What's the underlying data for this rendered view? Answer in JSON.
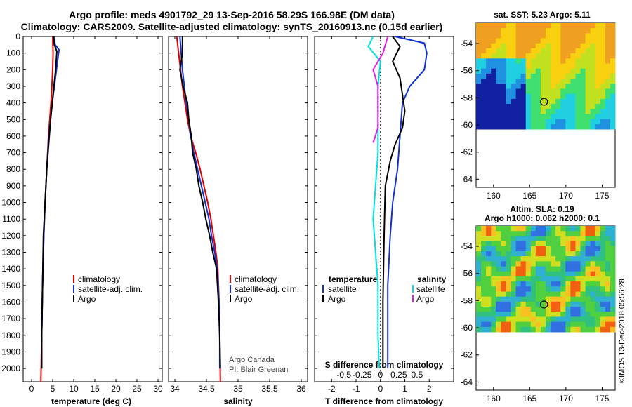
{
  "header": {
    "title_line1": "Argo profile: meds 4901792_29 13-Sep-2016 58.29S 166.98E (DM data)",
    "title_line2": "Climatology: CARS2009. Satellite-adjusted climatology: synTS_20160913.nc (0.15d earlier)"
  },
  "depth_ticks": [
    0,
    100,
    200,
    300,
    400,
    500,
    600,
    700,
    800,
    900,
    1000,
    1100,
    1200,
    1300,
    1400,
    1500,
    1600,
    1700,
    1800,
    1900,
    2000
  ],
  "colors": {
    "climatology": "#e00000",
    "satellite": "#1030d0",
    "argo": "#000000",
    "salinity_satellite": "#00e0e0",
    "salinity_argo": "#e020e0"
  },
  "chart_data": [
    {
      "type": "line",
      "xlabel": "temperature (deg C)",
      "ylabel": "",
      "xticks": [
        0,
        5,
        10,
        15,
        20,
        25,
        30
      ],
      "xlim": [
        -2,
        31
      ],
      "ylim": [
        2080,
        0
      ],
      "legend": [
        "climatology",
        "satellite-adj. clim.",
        "Argo"
      ],
      "series": [
        {
          "name": "climatology",
          "color": "#e00000",
          "points": [
            [
              5.0,
              0
            ],
            [
              5.1,
              100
            ],
            [
              5.0,
              200
            ],
            [
              4.8,
              300
            ],
            [
              4.6,
              400
            ],
            [
              4.3,
              500
            ],
            [
              4.0,
              600
            ],
            [
              3.6,
              800
            ],
            [
              3.2,
              1000
            ],
            [
              2.9,
              1200
            ],
            [
              2.6,
              1500
            ],
            [
              2.4,
              1800
            ],
            [
              2.2,
              2080
            ]
          ]
        },
        {
          "name": "satellite-adj. clim.",
          "color": "#1030d0",
          "points": [
            [
              5.3,
              0
            ],
            [
              5.6,
              50
            ],
            [
              6.5,
              80
            ],
            [
              5.9,
              200
            ],
            [
              5.4,
              300
            ],
            [
              4.9,
              400
            ],
            [
              4.5,
              500
            ],
            [
              4.1,
              600
            ],
            [
              3.6,
              800
            ],
            [
              3.2,
              1000
            ],
            [
              2.9,
              1200
            ],
            [
              2.6,
              1500
            ],
            [
              2.4,
              1800
            ],
            [
              2.4,
              2000
            ]
          ]
        },
        {
          "name": "Argo",
          "color": "#000000",
          "points": [
            [
              5.2,
              0
            ],
            [
              5.4,
              50
            ],
            [
              6.0,
              90
            ],
            [
              5.7,
              200
            ],
            [
              5.3,
              300
            ],
            [
              4.9,
              400
            ],
            [
              4.5,
              500
            ],
            [
              4.2,
              600
            ],
            [
              3.6,
              800
            ],
            [
              3.2,
              1000
            ],
            [
              2.8,
              1200
            ],
            [
              2.6,
              1500
            ],
            [
              2.4,
              1800
            ],
            [
              2.4,
              2000
            ]
          ]
        }
      ]
    },
    {
      "type": "line",
      "xlabel": "salinity",
      "ylabel": "",
      "xticks": [
        34,
        34.5,
        35,
        35.5,
        36
      ],
      "xlim": [
        33.9,
        36.1
      ],
      "ylim": [
        2080,
        0
      ],
      "legend": [
        "climatology",
        "satellite-adj. clim.",
        "Argo"
      ],
      "annotations": [
        "Argo Canada",
        "PI: Blair Greenan"
      ],
      "series": [
        {
          "name": "climatology",
          "color": "#e00000",
          "points": [
            [
              34.03,
              0
            ],
            [
              34.06,
              100
            ],
            [
              34.09,
              200
            ],
            [
              34.12,
              300
            ],
            [
              34.16,
              400
            ],
            [
              34.2,
              500
            ],
            [
              34.25,
              600
            ],
            [
              34.33,
              700
            ],
            [
              34.4,
              800
            ],
            [
              34.46,
              900
            ],
            [
              34.52,
              1000
            ],
            [
              34.57,
              1100
            ],
            [
              34.61,
              1200
            ],
            [
              34.65,
              1300
            ],
            [
              34.68,
              1400
            ],
            [
              34.7,
              1600
            ],
            [
              34.71,
              1800
            ],
            [
              34.72,
              2080
            ]
          ]
        },
        {
          "name": "satellite-adj. clim.",
          "color": "#1030d0",
          "points": [
            [
              34.08,
              0
            ],
            [
              34.1,
              100
            ],
            [
              34.12,
              200
            ],
            [
              34.15,
              300
            ],
            [
              34.18,
              400
            ],
            [
              34.22,
              500
            ],
            [
              34.25,
              600
            ],
            [
              34.3,
              700
            ],
            [
              34.36,
              800
            ],
            [
              34.42,
              900
            ],
            [
              34.48,
              1000
            ],
            [
              34.54,
              1100
            ],
            [
              34.58,
              1200
            ],
            [
              34.63,
              1300
            ],
            [
              34.67,
              1400
            ],
            [
              34.7,
              1600
            ],
            [
              34.71,
              1800
            ],
            [
              34.71,
              2000
            ]
          ]
        },
        {
          "name": "Argo",
          "color": "#000000",
          "points": [
            [
              34.12,
              0
            ],
            [
              34.12,
              100
            ],
            [
              34.08,
              200
            ],
            [
              34.13,
              300
            ],
            [
              34.2,
              400
            ],
            [
              34.22,
              500
            ],
            [
              34.26,
              600
            ],
            [
              34.28,
              700
            ],
            [
              34.34,
              800
            ],
            [
              34.38,
              900
            ],
            [
              34.44,
              1000
            ],
            [
              34.49,
              1100
            ],
            [
              34.55,
              1200
            ],
            [
              34.6,
              1300
            ],
            [
              34.66,
              1400
            ],
            [
              34.69,
              1600
            ],
            [
              34.71,
              1800
            ],
            [
              34.72,
              2000
            ]
          ]
        }
      ]
    },
    {
      "type": "line",
      "xlabel": "T difference from climatology",
      "ylabel": "",
      "xticks": [
        -2,
        -1,
        0,
        1,
        2
      ],
      "xlim": [
        -2.7,
        3.0
      ],
      "ylim": [
        2080,
        0
      ],
      "secondary_axis_label": "S difference from climatology",
      "secondary_xticks": [
        "-0.5",
        "-0.25",
        "0",
        "0.25",
        "0.5"
      ],
      "legend_left": {
        "title": "temperature",
        "items": [
          "satellite",
          "Argo"
        ]
      },
      "legend_right": {
        "title": "salinity",
        "items": [
          "satellite",
          "Argo"
        ]
      },
      "series": [
        {
          "name": "satellite",
          "color": "#1030d0",
          "points": [
            [
              0.6,
              0
            ],
            [
              1.8,
              40
            ],
            [
              1.9,
              100
            ],
            [
              1.8,
              200
            ],
            [
              1.2,
              300
            ],
            [
              0.9,
              400
            ],
            [
              0.8,
              600
            ],
            [
              0.7,
              800
            ],
            [
              0.5,
              1000
            ],
            [
              0.4,
              1200
            ],
            [
              0.3,
              1500
            ],
            [
              0.3,
              1800
            ],
            [
              0.3,
              2000
            ]
          ]
        },
        {
          "name": "Argo",
          "color": "#000000",
          "points": [
            [
              0.5,
              0
            ],
            [
              0.8,
              60
            ],
            [
              0.5,
              150
            ],
            [
              0.8,
              250
            ],
            [
              0.9,
              350
            ],
            [
              1.0,
              450
            ],
            [
              0.9,
              550
            ],
            [
              0.6,
              650
            ],
            [
              0.4,
              750
            ],
            [
              0.2,
              900
            ],
            [
              0.15,
              1200
            ],
            [
              0.1,
              1600
            ],
            [
              0.1,
              2000
            ]
          ]
        },
        {
          "name": "salinity satellite",
          "color": "#00e0e0",
          "points": [
            [
              -0.3,
              0
            ],
            [
              -0.5,
              60
            ],
            [
              0.0,
              150
            ],
            [
              -0.1,
              300
            ],
            [
              -0.1,
              500
            ],
            [
              -0.1,
              700
            ],
            [
              -0.2,
              900
            ],
            [
              -0.3,
              1100
            ],
            [
              -0.2,
              1300
            ],
            [
              -0.1,
              1500
            ],
            [
              -0.1,
              1800
            ],
            [
              -0.05,
              2000
            ]
          ]
        },
        {
          "name": "salinity Argo",
          "color": "#e020e0",
          "points": [
            [
              0.3,
              0
            ],
            [
              0.1,
              100
            ],
            [
              -0.3,
              200
            ],
            [
              -0.1,
              300
            ],
            [
              -0.1,
              550
            ],
            [
              -0.3,
              640
            ]
          ]
        }
      ]
    },
    {
      "type": "heatmap",
      "title": "sat. SST: 5.23 Argo: 5.11",
      "xticks": [
        160,
        165,
        170,
        175
      ],
      "yticks": [
        -54,
        -56,
        -58,
        -60,
        -62,
        -64
      ],
      "marker": [
        166.98,
        -58.29
      ]
    },
    {
      "type": "heatmap",
      "title": "Altim. SLA: 0.19",
      "subtitle": "Argo h1000: 0.062 h2000: 0.1",
      "xticks": [
        160,
        165,
        170,
        175
      ],
      "yticks": [
        -54,
        -56,
        -58,
        -60,
        -62,
        -64
      ],
      "marker": [
        166.98,
        -58.29
      ]
    }
  ],
  "footer": {
    "watermark": "©IMOS 13-Dec-2018 05:56:28"
  }
}
